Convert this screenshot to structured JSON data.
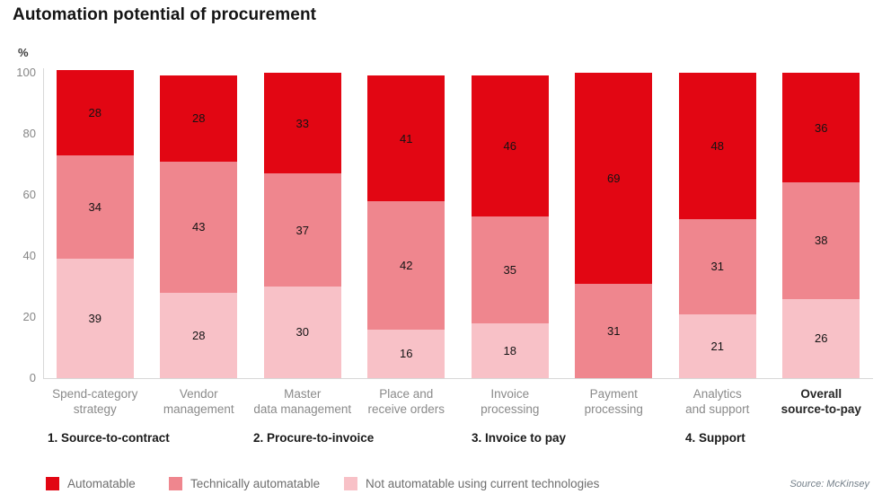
{
  "title": "Automation potential of procurement",
  "source_note": "Source: McKinsey",
  "y_axis": {
    "unit_label": "%",
    "ticks": [
      0,
      20,
      40,
      60,
      80,
      100
    ],
    "max": 100
  },
  "chart_data": {
    "type": "bar",
    "stacked": true,
    "title": "Automation potential of procurement",
    "xlabel": "",
    "ylabel": "%",
    "ylim": [
      0,
      100
    ],
    "grid": false,
    "legend_position": "bottom",
    "categories": [
      [
        "Spend-category",
        "strategy"
      ],
      [
        "Vendor",
        "management"
      ],
      [
        "Master",
        "data management"
      ],
      [
        "Place and",
        "receive orders"
      ],
      [
        "Invoice",
        "processing"
      ],
      [
        "Payment",
        "processing"
      ],
      [
        "Analytics",
        "and support"
      ],
      [
        "Overall",
        "source-to-pay"
      ]
    ],
    "emphasized_category": "Overall source-to-pay",
    "group_labels": [
      "1. Source-to-contract",
      "2. Procure-to-invoice",
      "3. Invoice to pay",
      "4. Support"
    ],
    "series": [
      {
        "name": "Automatable",
        "color": "#e20613",
        "values": [
          28,
          28,
          33,
          41,
          46,
          69,
          48,
          36
        ]
      },
      {
        "name": "Technically automatable",
        "color": "#ef868e",
        "values": [
          34,
          43,
          37,
          42,
          35,
          31,
          31,
          38
        ]
      },
      {
        "name": "Not automatable using current technologies",
        "color": "#f8c1c7",
        "values": [
          39,
          28,
          30,
          16,
          18,
          0,
          21,
          26
        ]
      }
    ]
  }
}
